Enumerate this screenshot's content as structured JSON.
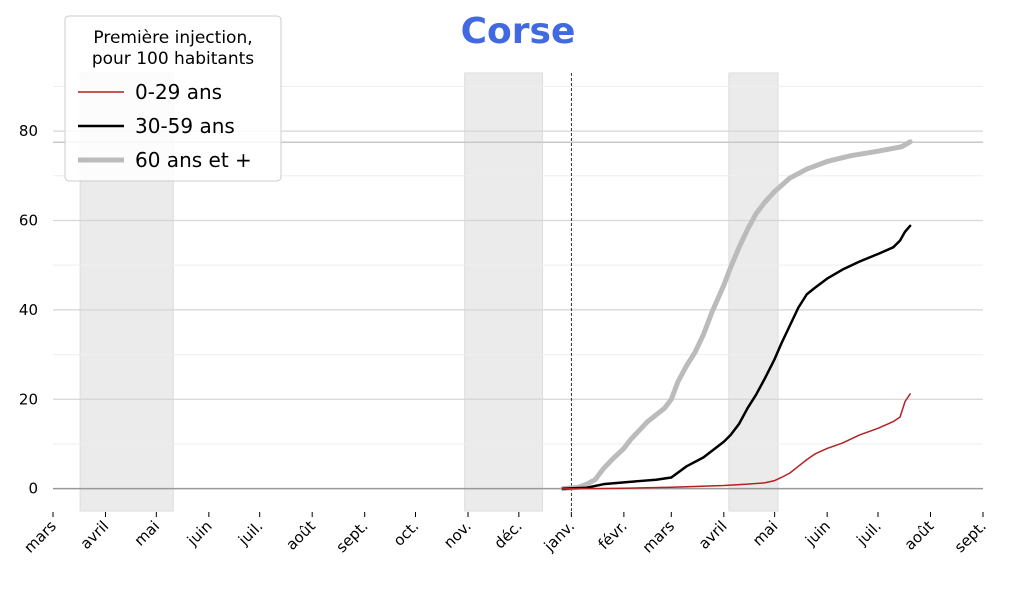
{
  "chart_data": {
    "type": "line",
    "title": "Corse",
    "title_color": "#4169E1",
    "x_axis": {
      "start": "2020-03-01",
      "end": "2021-09-01",
      "tick_labels": [
        "mars",
        "avril",
        "mai",
        "juin",
        "juil.",
        "août",
        "sept.",
        "oct.",
        "nov.",
        "déc.",
        "janv.",
        "févr.",
        "mars",
        "avril",
        "mai",
        "juin",
        "juil.",
        "août",
        "sept."
      ],
      "tick_dates": [
        "2020-03-01",
        "2020-04-01",
        "2020-05-01",
        "2020-06-01",
        "2020-07-01",
        "2020-08-01",
        "2020-09-01",
        "2020-10-01",
        "2020-11-01",
        "2020-12-01",
        "2021-01-01",
        "2021-02-01",
        "2021-03-01",
        "2021-04-01",
        "2021-05-01",
        "2021-06-01",
        "2021-07-01",
        "2021-08-01",
        "2021-09-01"
      ]
    },
    "y_axis": {
      "ylim": [
        -5,
        93
      ],
      "ticks": [
        0,
        20,
        40,
        60,
        80
      ],
      "tick_labels": [
        "0",
        "20",
        "40",
        "60",
        "80"
      ],
      "grid": true
    },
    "reference_line_y": 77.5,
    "vertical_line_date": "2021-01-01",
    "shaded_periods": [
      {
        "start": "2020-03-17",
        "end": "2020-05-11"
      },
      {
        "start": "2020-10-30",
        "end": "2020-12-15"
      },
      {
        "start": "2021-04-04",
        "end": "2021-05-03"
      }
    ],
    "legend": {
      "title": [
        "Première injection,",
        "pour 100 habitants"
      ],
      "position": "top-left"
    },
    "series": [
      {
        "name": "0-29 ans",
        "color": "#B22222",
        "width": 1.5,
        "points": [
          [
            "2020-12-27",
            0
          ],
          [
            "2021-01-15",
            0
          ],
          [
            "2021-02-01",
            0.1
          ],
          [
            "2021-03-01",
            0.3
          ],
          [
            "2021-04-01",
            0.7
          ],
          [
            "2021-04-15",
            1.0
          ],
          [
            "2021-04-25",
            1.3
          ],
          [
            "2021-05-01",
            1.8
          ],
          [
            "2021-05-05",
            2.5
          ],
          [
            "2021-05-10",
            3.5
          ],
          [
            "2021-05-15",
            5.0
          ],
          [
            "2021-05-20",
            6.5
          ],
          [
            "2021-05-25",
            7.8
          ],
          [
            "2021-06-01",
            9.0
          ],
          [
            "2021-06-10",
            10.2
          ],
          [
            "2021-06-20",
            12.0
          ],
          [
            "2021-07-01",
            13.5
          ],
          [
            "2021-07-10",
            15.0
          ],
          [
            "2021-07-14",
            16.0
          ],
          [
            "2021-07-17",
            19.5
          ],
          [
            "2021-07-20",
            21.2
          ]
        ]
      },
      {
        "name": "30-59 ans",
        "color": "#000000",
        "width": 2.5,
        "points": [
          [
            "2020-12-27",
            0
          ],
          [
            "2021-01-10",
            0.2
          ],
          [
            "2021-01-20",
            1.0
          ],
          [
            "2021-02-01",
            1.4
          ],
          [
            "2021-02-10",
            1.7
          ],
          [
            "2021-02-20",
            2.0
          ],
          [
            "2021-03-01",
            2.5
          ],
          [
            "2021-03-10",
            5.0
          ],
          [
            "2021-03-20",
            7.0
          ],
          [
            "2021-04-01",
            10.5
          ],
          [
            "2021-04-05",
            12.0
          ],
          [
            "2021-04-10",
            14.5
          ],
          [
            "2021-04-15",
            18.0
          ],
          [
            "2021-04-20",
            21.0
          ],
          [
            "2021-04-25",
            24.5
          ],
          [
            "2021-05-01",
            29.0
          ],
          [
            "2021-05-05",
            32.5
          ],
          [
            "2021-05-10",
            36.5
          ],
          [
            "2021-05-15",
            40.5
          ],
          [
            "2021-05-20",
            43.5
          ],
          [
            "2021-05-25",
            45.0
          ],
          [
            "2021-06-01",
            47.0
          ],
          [
            "2021-06-10",
            49.0
          ],
          [
            "2021-06-20",
            50.8
          ],
          [
            "2021-07-01",
            52.5
          ],
          [
            "2021-07-10",
            54.0
          ],
          [
            "2021-07-14",
            55.5
          ],
          [
            "2021-07-17",
            57.5
          ],
          [
            "2021-07-20",
            58.8
          ]
        ]
      },
      {
        "name": "60 ans et +",
        "color": "#BBBBBB",
        "width": 5,
        "points": [
          [
            "2020-12-27",
            0
          ],
          [
            "2021-01-05",
            0.3
          ],
          [
            "2021-01-10",
            1.0
          ],
          [
            "2021-01-15",
            2.0
          ],
          [
            "2021-01-20",
            4.5
          ],
          [
            "2021-01-25",
            6.5
          ],
          [
            "2021-02-01",
            9.0
          ],
          [
            "2021-02-05",
            11.0
          ],
          [
            "2021-02-10",
            13.0
          ],
          [
            "2021-02-15",
            15.0
          ],
          [
            "2021-02-20",
            16.5
          ],
          [
            "2021-02-25",
            18.0
          ],
          [
            "2021-03-01",
            20.0
          ],
          [
            "2021-03-05",
            24.0
          ],
          [
            "2021-03-10",
            27.5
          ],
          [
            "2021-03-15",
            30.5
          ],
          [
            "2021-03-20",
            34.5
          ],
          [
            "2021-03-25",
            39.5
          ],
          [
            "2021-04-01",
            45.5
          ],
          [
            "2021-04-05",
            49.5
          ],
          [
            "2021-04-10",
            54.0
          ],
          [
            "2021-04-15",
            58.0
          ],
          [
            "2021-04-20",
            61.5
          ],
          [
            "2021-04-25",
            64.0
          ],
          [
            "2021-05-01",
            66.5
          ],
          [
            "2021-05-10",
            69.5
          ],
          [
            "2021-05-20",
            71.5
          ],
          [
            "2021-06-01",
            73.2
          ],
          [
            "2021-06-15",
            74.5
          ],
          [
            "2021-07-01",
            75.5
          ],
          [
            "2021-07-15",
            76.5
          ],
          [
            "2021-07-20",
            77.6
          ]
        ]
      }
    ]
  }
}
